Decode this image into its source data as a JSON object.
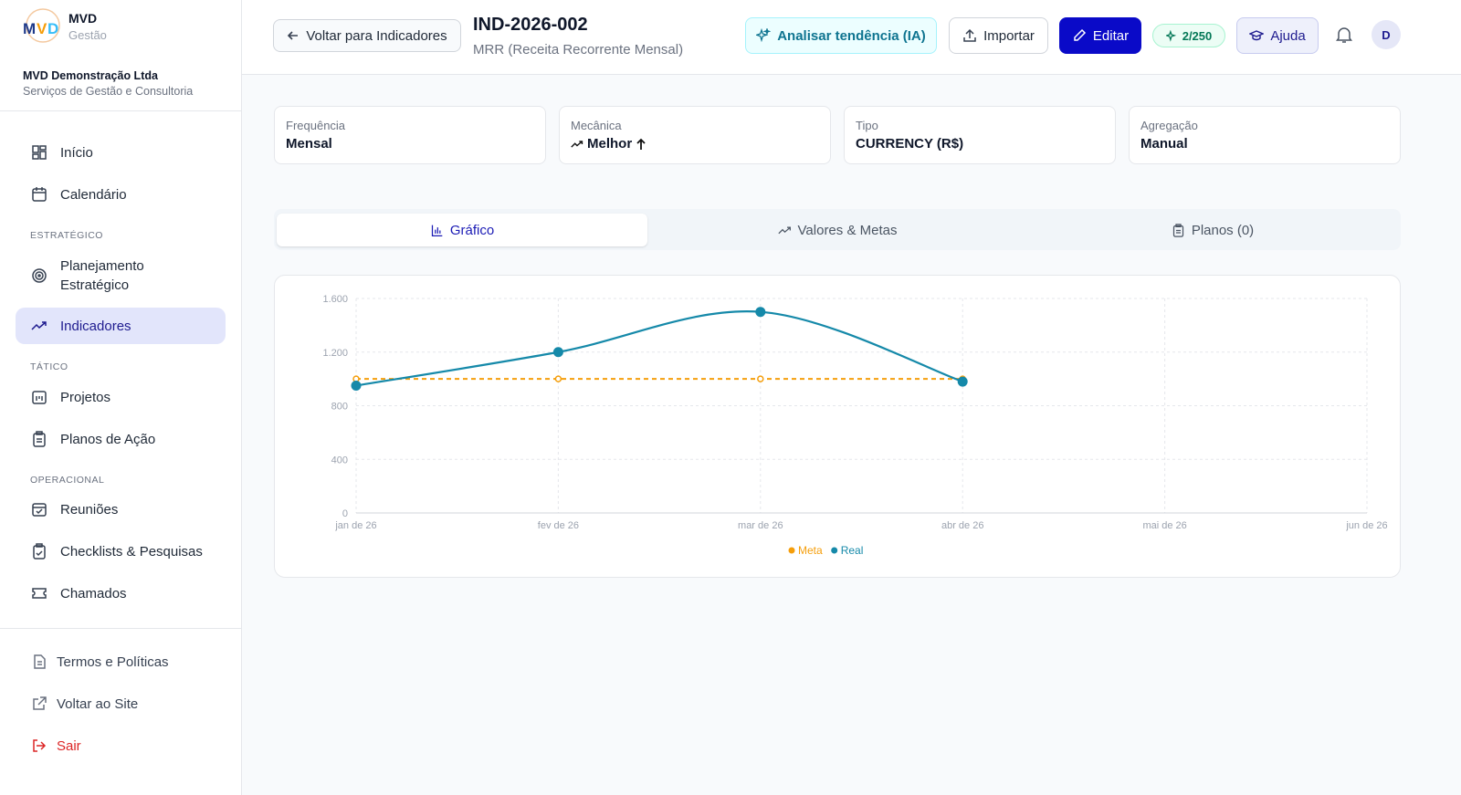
{
  "brand": {
    "name": "MVD",
    "sub": "Gestão"
  },
  "org": {
    "name": "MVD Demonstração Ltda",
    "desc": "Serviços de Gestão e Consultoria"
  },
  "nav": [
    {
      "label": "Início",
      "y": 0
    },
    {
      "label": "Calendário"
    },
    {
      "heading": "ESTRATÉGICO"
    },
    {
      "label": "Planejamento Estratégico"
    },
    {
      "label": "Indicadores",
      "active": true
    },
    {
      "heading": "TÁTICO"
    },
    {
      "label": "Projetos"
    },
    {
      "label": "Planos de Ação"
    },
    {
      "heading": "OPERACIONAL"
    },
    {
      "label": "Reuniões"
    },
    {
      "label": "Checklists & Pesquisas"
    },
    {
      "label": "Chamados"
    }
  ],
  "footer_nav": [
    "Termos e Políticas",
    "Voltar ao Site",
    "Sair"
  ],
  "header": {
    "back": "Voltar para Indicadores",
    "code": "IND-2026-002",
    "name": "MRR (Receita Recorrente Mensal)",
    "analyze": "Analisar tendência (IA)",
    "import": "Importar",
    "edit": "Editar",
    "quota": "2/250",
    "help": "Ajuda",
    "avatar": "D"
  },
  "cards": [
    {
      "label": "Frequência",
      "value": "Mensal"
    },
    {
      "label": "Mecânica",
      "value": "Melhor"
    },
    {
      "label": "Tipo",
      "value": "CURRENCY (R$)"
    },
    {
      "label": "Agregação",
      "value": "Manual"
    }
  ],
  "tabs": [
    "Gráfico",
    "Valores & Metas",
    "Planos (0)"
  ],
  "chart_data": {
    "type": "line",
    "categories": [
      "jan de 26",
      "fev de 26",
      "mar de 26",
      "abr de 26",
      "mai de 26",
      "jun de 26"
    ],
    "series": [
      {
        "name": "Meta",
        "color": "#f59e0b",
        "dashed": true,
        "values": [
          1000,
          1000,
          1000,
          1000,
          null,
          null
        ]
      },
      {
        "name": "Real",
        "color": "#1589a9",
        "smooth": true,
        "values": [
          950,
          1200,
          1500,
          980,
          null,
          null
        ]
      }
    ],
    "ylim": [
      0,
      1600
    ],
    "yticks": [
      0,
      400,
      800,
      {
        "value": 1200,
        "label": "1.200"
      },
      {
        "value": 1600,
        "label": "1.600"
      }
    ],
    "grid": true,
    "legend": "bottom"
  }
}
